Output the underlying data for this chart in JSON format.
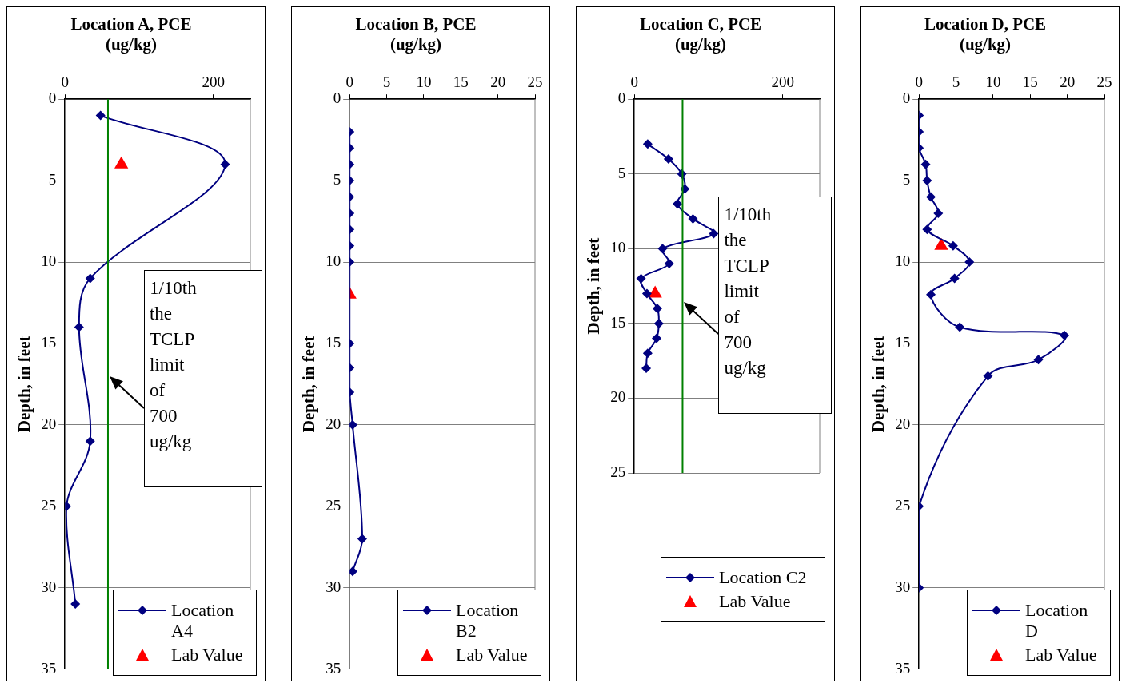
{
  "chart_data": [
    {
      "type": "line",
      "title": "Location A, PCE\n(ug/kg)",
      "ylabel": "Depth, in feet",
      "xlim": [
        0,
        250
      ],
      "xticks": [
        0,
        200
      ],
      "ylim": [
        35,
        0
      ],
      "yticks": [
        0,
        5,
        10,
        15,
        20,
        25,
        30,
        35
      ],
      "grid": "y",
      "legend": "bottom right",
      "series": [
        {
          "name": "Location A4",
          "color": "#000080",
          "marker": "diamond",
          "x": [
            48,
            216,
            34,
            19,
            34,
            2,
            14
          ],
          "values": [
            1,
            4,
            11,
            14,
            21,
            25,
            31
          ]
        },
        {
          "name": "Lab Value",
          "type": "scatter",
          "color": "#ff0000",
          "marker": "triangle",
          "x": [
            76
          ],
          "values": [
            4
          ]
        }
      ],
      "ref_lines": [
        {
          "axis": "x",
          "value": 58,
          "label": "1/10th the TCLP limit of 700 ug/kg",
          "color": "#008000"
        }
      ]
    },
    {
      "type": "line",
      "title": "Location B, PCE\n(ug/kg)",
      "ylabel": "Depth, in feet",
      "xlim": [
        0,
        25
      ],
      "xticks": [
        0,
        5,
        10,
        15,
        20,
        25
      ],
      "ylim": [
        35,
        0
      ],
      "yticks": [
        0,
        5,
        10,
        15,
        20,
        25,
        30,
        35
      ],
      "grid": "y",
      "legend": "bottom right",
      "series": [
        {
          "name": "Location B2",
          "color": "#000080",
          "marker": "diamond",
          "x": [
            0,
            0,
            0,
            0,
            0,
            0,
            0,
            0,
            0,
            0,
            0,
            0,
            0.4,
            1.7,
            0.4
          ],
          "values": [
            2,
            3,
            4,
            5,
            6,
            7,
            8,
            9,
            10,
            15,
            16.5,
            18,
            20,
            27,
            29
          ]
        },
        {
          "name": "Lab Value",
          "type": "scatter",
          "color": "#ff0000",
          "marker": "triangle",
          "x": [
            0
          ],
          "values": [
            12
          ]
        }
      ]
    },
    {
      "type": "line",
      "title": "Location C, PCE\n(ug/kg)",
      "ylabel": "Depth, in feet",
      "xlim": [
        0,
        250
      ],
      "xticks": [
        0,
        200
      ],
      "ylim": [
        25,
        0
      ],
      "yticks": [
        0,
        5,
        10,
        15,
        20,
        25
      ],
      "grid": "y",
      "legend": "bottom",
      "series": [
        {
          "name": "Location C2",
          "color": "#000080",
          "marker": "diamond",
          "x": [
            18,
            46,
            64,
            68,
            58,
            79,
            107,
            38,
            47,
            9,
            17,
            31,
            33,
            30,
            18,
            16
          ],
          "values": [
            3,
            4,
            5,
            6,
            7,
            8,
            9,
            10,
            11,
            12,
            13,
            14,
            15,
            16,
            17,
            18
          ]
        },
        {
          "name": "Lab Value",
          "type": "scatter",
          "color": "#ff0000",
          "marker": "triangle",
          "x": [
            28
          ],
          "values": [
            13
          ]
        }
      ],
      "ref_lines": [
        {
          "axis": "x",
          "value": 65,
          "label": "1/10th the TCLP limit of 700 ug/kg",
          "color": "#008000"
        }
      ]
    },
    {
      "type": "line",
      "title": "Location D, PCE\n(ug/kg)",
      "ylabel": "Depth, in feet",
      "xlim": [
        0,
        25
      ],
      "xticks": [
        0,
        5,
        10,
        15,
        20,
        25
      ],
      "ylim": [
        35,
        0
      ],
      "yticks": [
        0,
        5,
        10,
        15,
        20,
        25,
        30,
        35
      ],
      "grid": "y",
      "legend": "bottom right",
      "series": [
        {
          "name": "Location D",
          "color": "#000080",
          "marker": "diamond",
          "x": [
            0,
            0,
            0,
            0.9,
            1.1,
            1.6,
            2.6,
            1.1,
            4.6,
            6.8,
            4.8,
            1.6,
            5.5,
            19.6,
            16.1,
            9.3,
            0,
            0
          ],
          "values": [
            1,
            2,
            3,
            4,
            5,
            6,
            7,
            8,
            9,
            10,
            11,
            12,
            14,
            14.5,
            16,
            17,
            25,
            30
          ]
        },
        {
          "name": "Lab Value",
          "type": "scatter",
          "color": "#ff0000",
          "marker": "triangle",
          "x": [
            3.0
          ],
          "values": [
            9
          ]
        }
      ]
    }
  ]
}
